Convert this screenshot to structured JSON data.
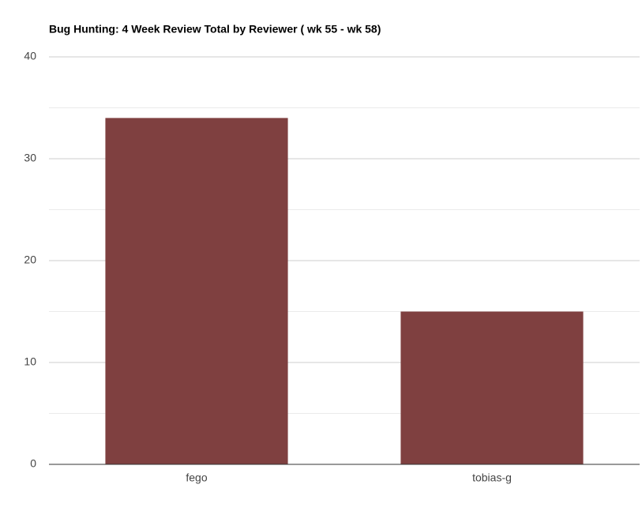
{
  "chart_data": {
    "type": "bar",
    "title": "Bug Hunting: 4 Week Review Total by Reviewer ( wk 55 - wk 58)",
    "categories": [
      "fego",
      "tobias-g"
    ],
    "values": [
      34,
      15
    ],
    "color": "#7f4040",
    "ylim": [
      0,
      40
    ],
    "yticks": [
      0,
      10,
      20,
      30,
      40
    ],
    "minor_yticks": [
      5,
      15,
      25,
      35
    ],
    "grid": true
  }
}
